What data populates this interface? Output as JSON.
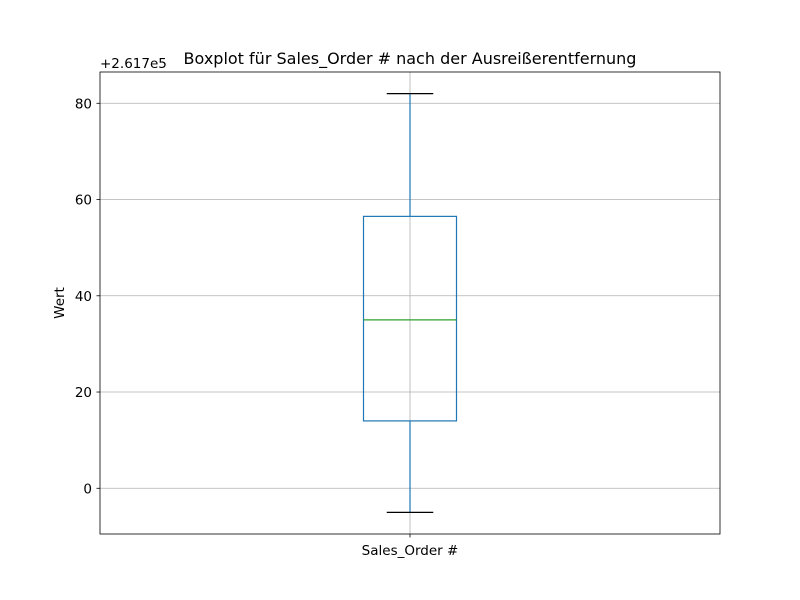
{
  "chart_data": {
    "type": "box",
    "title": "Boxplot für Sales_Order # nach der Ausreißerentfernung",
    "ylabel": "Wert",
    "xlabel": "",
    "y_offset_label": "+2.617e5",
    "y_offset": 261700,
    "ylim": [
      -9.5,
      86.5
    ],
    "y_ticks": [
      0,
      20,
      40,
      60,
      80
    ],
    "grid": true,
    "categories": [
      "Sales_Order #"
    ],
    "boxes": [
      {
        "name": "Sales_Order #",
        "whisker_low": -5,
        "q1": 14,
        "median": 35,
        "q3": 56.5,
        "whisker_high": 82
      }
    ],
    "colors": {
      "box": "#1f77b4",
      "median": "#2ca02c",
      "caps": "#000000",
      "grid": "#b0b0b0"
    }
  }
}
